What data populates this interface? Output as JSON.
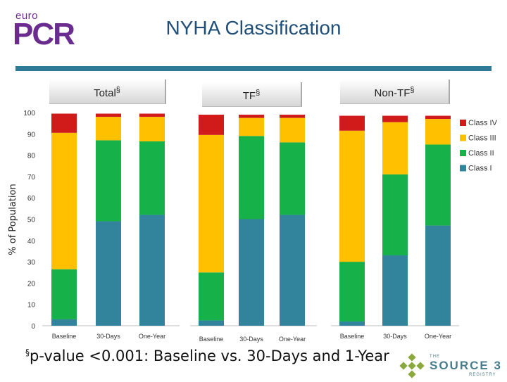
{
  "logo": {
    "top_text": "euro",
    "main_text": "PCR",
    "color": "#6b2c8f"
  },
  "title": "NYHA Classification",
  "footnote": {
    "mark": "§",
    "text": "p-value <0.001: Baseline vs. 30-Days and 1-Year"
  },
  "source_logo": {
    "small": "THE",
    "name": "SOURCE 3",
    "sub": "REGISTRY"
  },
  "chart_data": {
    "type": "bar",
    "stacked": true,
    "ylabel": "% of Population",
    "ylim": [
      0,
      100
    ],
    "yticks": [
      0,
      10,
      20,
      30,
      40,
      50,
      60,
      70,
      80,
      90,
      100
    ],
    "legend_position": "right",
    "groups": [
      {
        "label": "Total",
        "mark": "§",
        "categories": [
          "Baseline",
          "30-Days",
          "One-Year"
        ]
      },
      {
        "label": "TF",
        "mark": "§",
        "categories": [
          "Baseline",
          "30-Days",
          "One-Year"
        ]
      },
      {
        "label": "Non-TF",
        "mark": "§",
        "categories": [
          "Baseline",
          "30-Days",
          "One-Year"
        ]
      }
    ],
    "series": [
      {
        "name": "Class I",
        "color": "#31849b",
        "values": [
          [
            3,
            49,
            52
          ],
          [
            2.5,
            50,
            52
          ],
          [
            2,
            33,
            47
          ]
        ]
      },
      {
        "name": "Class II",
        "color": "#17b14a",
        "values": [
          [
            23.5,
            38,
            34.5
          ],
          [
            22.5,
            39,
            34
          ],
          [
            28,
            38,
            38
          ]
        ]
      },
      {
        "name": "Class III",
        "color": "#ffc000",
        "values": [
          [
            64,
            11,
            11.5
          ],
          [
            64.5,
            8.5,
            11.5
          ],
          [
            61.5,
            24.5,
            12
          ]
        ]
      },
      {
        "name": "Class IV",
        "color": "#d11a1a",
        "values": [
          [
            9,
            1.5,
            1.5
          ],
          [
            9.5,
            1.5,
            1.5
          ],
          [
            7,
            3,
            1.5
          ]
        ]
      }
    ]
  }
}
